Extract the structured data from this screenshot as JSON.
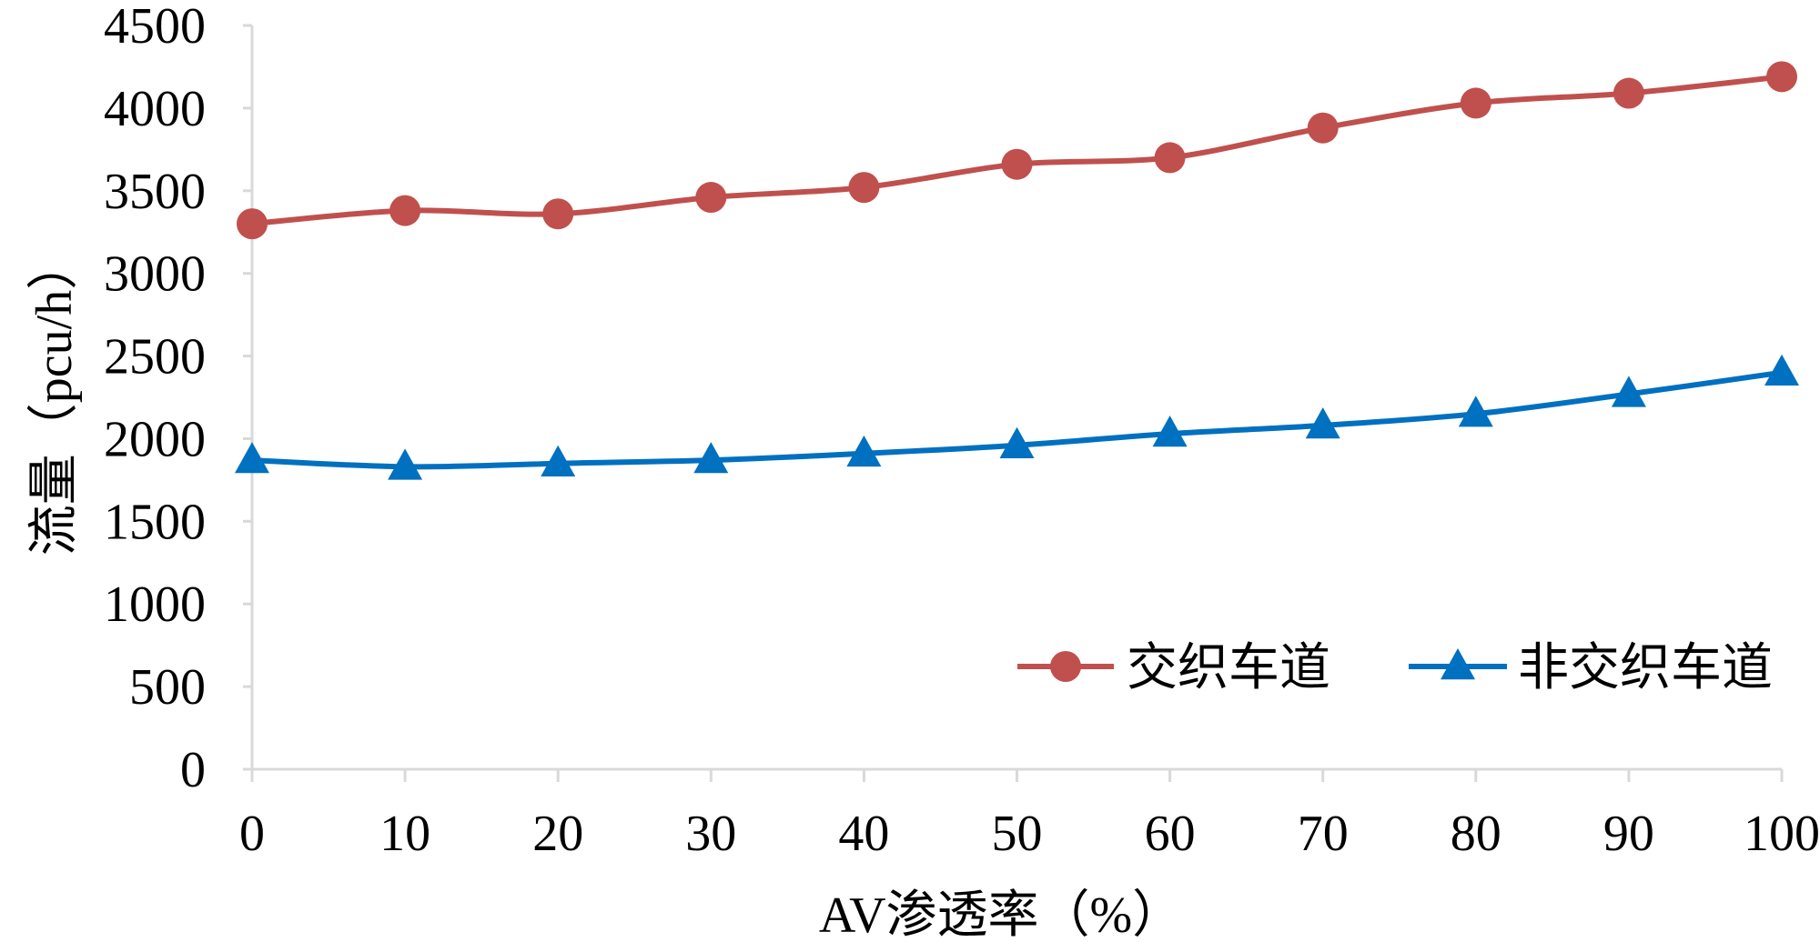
{
  "chart_data": {
    "type": "line",
    "xlabel": "AV渗透率（%）",
    "ylabel": "流量（pcu/h）",
    "x": [
      0,
      10,
      20,
      30,
      40,
      50,
      60,
      70,
      80,
      90,
      100
    ],
    "x_tick_labels": [
      "0",
      "10",
      "20",
      "30",
      "40",
      "50",
      "60",
      "70",
      "80",
      "90",
      "100"
    ],
    "y_tick_labels": [
      "0",
      "500",
      "1000",
      "1500",
      "2000",
      "2500",
      "3000",
      "3500",
      "4000",
      "4500"
    ],
    "y_ticks": [
      0,
      500,
      1000,
      1500,
      2000,
      2500,
      3000,
      3500,
      4000,
      4500
    ],
    "ylim": [
      0,
      4500
    ],
    "xlim": [
      0,
      100
    ],
    "grid": false,
    "legend_position": "bottom-right",
    "series": [
      {
        "name": "交织车道",
        "marker": "circle",
        "color": "#c0504d",
        "values": [
          3300,
          3380,
          3360,
          3460,
          3520,
          3660,
          3700,
          3880,
          4030,
          4090,
          4190
        ]
      },
      {
        "name": "非交织车道",
        "marker": "triangle",
        "color": "#0070c0",
        "values": [
          1870,
          1830,
          1850,
          1870,
          1910,
          1960,
          2030,
          2080,
          2150,
          2270,
          2400
        ]
      }
    ]
  }
}
